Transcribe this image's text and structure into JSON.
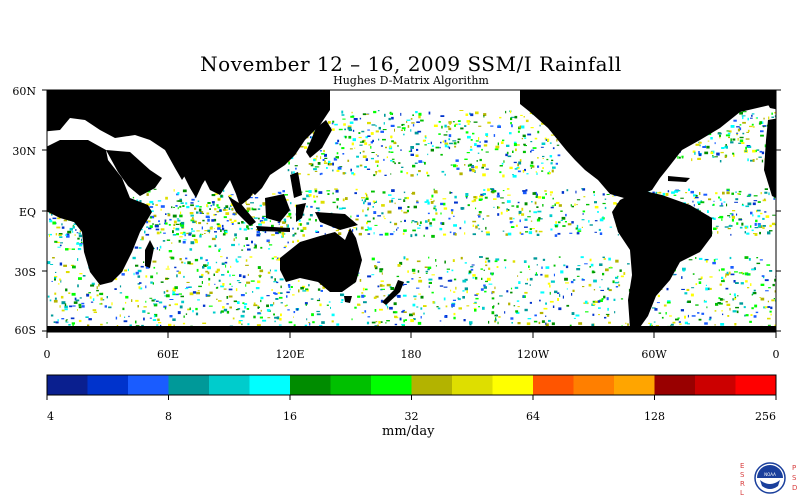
{
  "title": "November 12 – 16, 2009 SSM/I Rainfall",
  "subtitle": "Hughes D-Matrix Algorithm",
  "map": {
    "lat_labels": [
      "60N",
      "30N",
      "EQ",
      "30S",
      "60S"
    ],
    "lon_labels": [
      "0",
      "60E",
      "120E",
      "180",
      "120W",
      "60W",
      "0"
    ],
    "land_color": "#000000",
    "ocean_color": "#ffffff"
  },
  "colorbar": {
    "unit_label": "mm/day",
    "tick_labels": [
      "4",
      "8",
      "16",
      "32",
      "64",
      "128",
      "256"
    ],
    "colors": [
      "#0a1f8f",
      "#0033cc",
      "#1a5cff",
      "#009999",
      "#00cccc",
      "#00ffff",
      "#008c00",
      "#00c000",
      "#00ff00",
      "#b3b300",
      "#dede00",
      "#ffff00",
      "#ff5500",
      "#ff7f00",
      "#ffa500",
      "#990000",
      "#cc0000",
      "#ff0000"
    ]
  },
  "logo": {
    "left_letters": "ESRL",
    "right_letters": "PSD",
    "seal_text": "NOAA"
  }
}
